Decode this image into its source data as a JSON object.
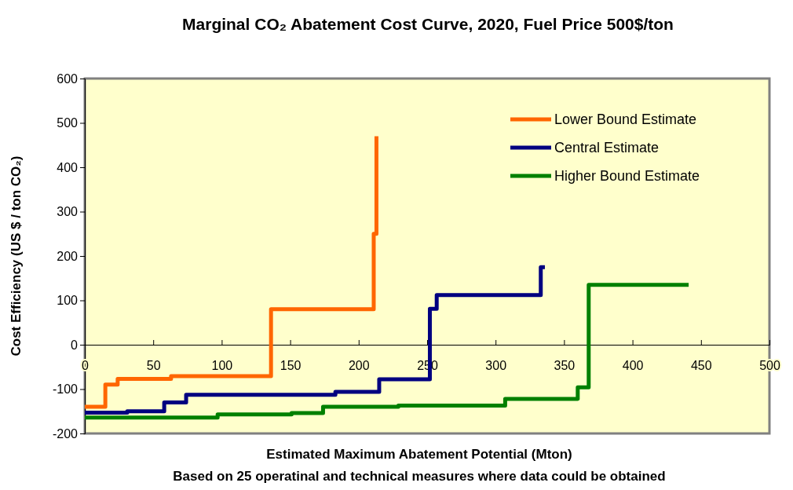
{
  "chart_data": {
    "type": "step",
    "title": "Marginal CO₂ Abatement Cost Curve, 2020, Fuel Price 500$/ton",
    "xlabel": "Estimated Maximum Abatement Potential (Mton)",
    "ylabel": "Cost Efficiency (US $ / ton CO₂)",
    "annotations": [
      "Based on 25 operatinal and technical measures where data could be obtained"
    ],
    "series": [
      {
        "name": "Lower Bound Estimate",
        "color": "#ff6600",
        "x": [
          0,
          15,
          24,
          63,
          136,
          211,
          213
        ],
        "values": [
          -140,
          -90,
          -77,
          -71,
          80,
          250,
          470
        ]
      },
      {
        "name": "Central Estimate",
        "color": "#000080",
        "x": [
          0,
          31,
          58,
          74,
          183,
          215,
          252,
          257,
          333,
          336
        ],
        "values": [
          -153,
          -150,
          -130,
          -113,
          -106,
          -78,
          81,
          112,
          175,
          175
        ]
      },
      {
        "name": "Higher Bound Estimate",
        "color": "#008000",
        "x": [
          0,
          97,
          151,
          174,
          229,
          307,
          360,
          368,
          441
        ],
        "values": [
          -164,
          -157,
          -154,
          -140,
          -137,
          -122,
          -96,
          135,
          135
        ]
      }
    ],
    "xlim": [
      0,
      500
    ],
    "xticks": [
      0,
      50,
      100,
      150,
      200,
      250,
      300,
      350,
      400,
      450,
      500
    ],
    "ylim": [
      -200,
      600
    ],
    "yticks": [
      -200,
      -100,
      0,
      100,
      200,
      300,
      400,
      500,
      600
    ],
    "legend": "top right",
    "grid": false,
    "line_style": "solid",
    "marker": "none"
  }
}
